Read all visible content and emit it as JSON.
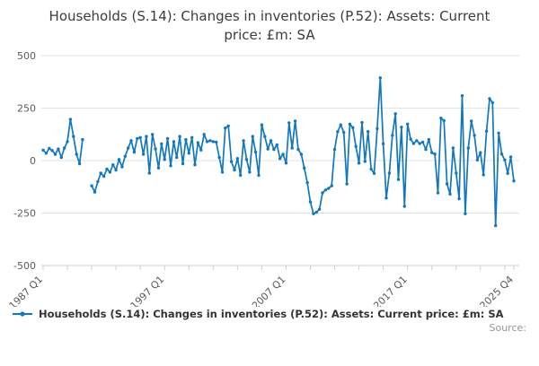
{
  "title": "Households (S.14): Changes in inventories (P.52): Assets: Current price: £m: SA",
  "legend": {
    "label": "Households (S.14): Changes in inventories (P.52): Assets: Current price: £m: SA"
  },
  "source_label": "Source:",
  "colors": {
    "line": "#1377bd",
    "grid": "#e2e2e2",
    "axis": "#c7d0da",
    "axis_text": "#5b5b5b",
    "title_text": "#3c3c3c",
    "legend_text": "#333333",
    "source_text": "#949494"
  },
  "chart_data": {
    "type": "line",
    "title": "Households (S.14): Changes in inventories (P.52): Assets: Current price: £m: SA",
    "xlabel": "",
    "ylabel": "£m",
    "ylim": [
      -500,
      500
    ],
    "y_ticks": [
      500,
      250,
      0,
      -250,
      -500
    ],
    "x_tick_labels": [
      {
        "label": "1987 Q1",
        "index": 0
      },
      {
        "label": "1997 Q1",
        "index": 40
      },
      {
        "label": "2007 Q1",
        "index": 80
      },
      {
        "label": "2017 Q1",
        "index": 120
      },
      {
        "label": "2025 Q4",
        "index": 155
      }
    ],
    "minor_tick_every_quarters": 8,
    "start_period": "1987 Q1",
    "end_period": "2025 Q4",
    "frequency": "quarterly",
    "grid": true,
    "legend_position": "bottom",
    "series": [
      {
        "name": "Households (S.14): Changes in inventories (P.52): Assets: Current price: £m: SA",
        "values": [
          50,
          35,
          58,
          48,
          30,
          55,
          15,
          60,
          90,
          196,
          115,
          30,
          -15,
          100,
          null,
          null,
          -120,
          -150,
          -100,
          -60,
          -75,
          -40,
          -55,
          -20,
          -45,
          5,
          -30,
          20,
          60,
          95,
          40,
          105,
          110,
          30,
          115,
          -60,
          125,
          55,
          -35,
          80,
          5,
          105,
          -25,
          90,
          15,
          115,
          -15,
          100,
          35,
          110,
          -20,
          85,
          50,
          125,
          90,
          95,
          90,
          88,
          15,
          -55,
          155,
          165,
          -5,
          -45,
          10,
          -70,
          95,
          5,
          -55,
          115,
          40,
          -70,
          170,
          115,
          55,
          95,
          53,
          75,
          10,
          30,
          -12,
          180,
          60,
          188,
          53,
          30,
          -35,
          -105,
          -197,
          -253,
          -246,
          -232,
          -154,
          -140,
          -132,
          -120,
          53,
          138,
          170,
          134,
          -111,
          174,
          157,
          67,
          -12,
          181,
          -4,
          138,
          -40,
          -61,
          152,
          394,
          80,
          -178,
          -60,
          120,
          223,
          -90,
          159,
          -218,
          174,
          102,
          81,
          95,
          81,
          88,
          53,
          100,
          38,
          31,
          -154,
          202,
          190,
          -111,
          -160,
          60,
          -60,
          -182,
          309,
          -253,
          60,
          188,
          120,
          3,
          38,
          -68,
          140,
          295,
          276,
          -310,
          131,
          31,
          3,
          -61,
          17,
          -97
        ]
      }
    ]
  }
}
